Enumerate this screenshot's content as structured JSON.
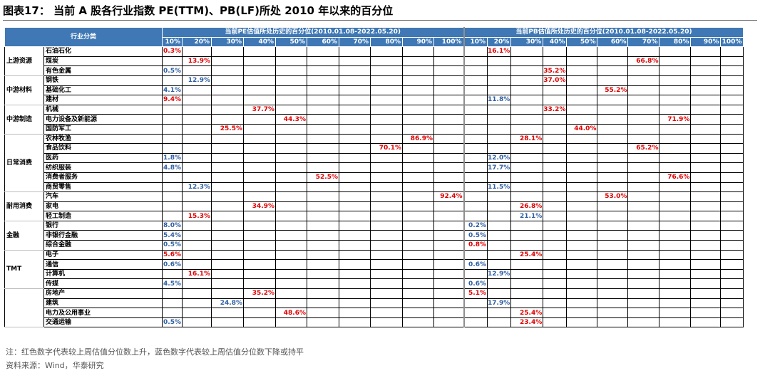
{
  "title": "图表17：  当前 A 股各行业指数 PE(TTM)、PB(LF)所处 2010 年以来的百分位",
  "table": {
    "industry_header": "行业分类",
    "pe_header": "当前PE估值所处历史的百分位(2010.01.08-2022.05.20)",
    "pb_header": "当前PB估值所处历史的百分位(2010.01.08-2022.05.20)",
    "percentile_labels": [
      "10%",
      "20%",
      "30%",
      "40%",
      "50%",
      "60%",
      "70%",
      "80%",
      "90%",
      "100%"
    ],
    "colors": {
      "up": "#e00000",
      "down": "#2f5fa3",
      "header": "#3f78b4"
    },
    "groups": [
      {
        "name": "上游资源",
        "industries": [
          {
            "name": "石油石化",
            "pe": "0.3%",
            "pe_dir": "up",
            "pb": "16.1%",
            "pb_dir": "up"
          },
          {
            "name": "煤炭",
            "pe": "13.9%",
            "pe_dir": "up",
            "pb": "66.8%",
            "pb_dir": "up"
          },
          {
            "name": "有色金属",
            "pe": "0.5%",
            "pe_dir": "down",
            "pb": "35.2%",
            "pb_dir": "up"
          }
        ]
      },
      {
        "name": "中游材料",
        "industries": [
          {
            "name": "钢铁",
            "pe": "12.9%",
            "pe_dir": "down",
            "pb": "37.0%",
            "pb_dir": "up"
          },
          {
            "name": "基础化工",
            "pe": "4.1%",
            "pe_dir": "down",
            "pb": "55.2%",
            "pb_dir": "up"
          },
          {
            "name": "建材",
            "pe": "9.4%",
            "pe_dir": "up",
            "pb": "11.8%",
            "pb_dir": "down"
          }
        ]
      },
      {
        "name": "中游制造",
        "industries": [
          {
            "name": "机械",
            "pe": "37.7%",
            "pe_dir": "up",
            "pb": "33.2%",
            "pb_dir": "up"
          },
          {
            "name": "电力设备及新能源",
            "pe": "44.3%",
            "pe_dir": "up",
            "pb": "71.9%",
            "pb_dir": "up"
          },
          {
            "name": "国防军工",
            "pe": "25.5%",
            "pe_dir": "up",
            "pb": "44.0%",
            "pb_dir": "up"
          }
        ]
      },
      {
        "name": "日常消费",
        "industries": [
          {
            "name": "农林牧渔",
            "pe": "86.9%",
            "pe_dir": "up",
            "pb": "28.1%",
            "pb_dir": "up"
          },
          {
            "name": "食品饮料",
            "pe": "70.1%",
            "pe_dir": "up",
            "pb": "65.2%",
            "pb_dir": "up"
          },
          {
            "name": "医药",
            "pe": "1.8%",
            "pe_dir": "down",
            "pb": "12.0%",
            "pb_dir": "down"
          },
          {
            "name": "纺织服装",
            "pe": "4.8%",
            "pe_dir": "down",
            "pb": "17.7%",
            "pb_dir": "down"
          },
          {
            "name": "消费者服务",
            "pe": "52.5%",
            "pe_dir": "up",
            "pb": "76.6%",
            "pb_dir": "up"
          },
          {
            "name": "商贸零售",
            "pe": "12.3%",
            "pe_dir": "down",
            "pb": "11.5%",
            "pb_dir": "down"
          }
        ]
      },
      {
        "name": "耐用消费",
        "industries": [
          {
            "name": "汽车",
            "pe": "92.4%",
            "pe_dir": "up",
            "pb": "53.0%",
            "pb_dir": "up"
          },
          {
            "name": "家电",
            "pe": "34.9%",
            "pe_dir": "up",
            "pb": "26.8%",
            "pb_dir": "up"
          },
          {
            "name": "轻工制造",
            "pe": "15.3%",
            "pe_dir": "up",
            "pb": "21.1%",
            "pb_dir": "down"
          }
        ]
      },
      {
        "name": "金融",
        "industries": [
          {
            "name": "银行",
            "pe": "8.0%",
            "pe_dir": "down",
            "pb": "0.2%",
            "pb_dir": "down"
          },
          {
            "name": "非银行金融",
            "pe": "5.4%",
            "pe_dir": "down",
            "pb": "0.5%",
            "pb_dir": "down"
          },
          {
            "name": "综合金融",
            "pe": "0.5%",
            "pe_dir": "down",
            "pb": "0.8%",
            "pb_dir": "up"
          }
        ]
      },
      {
        "name": "TMT",
        "industries": [
          {
            "name": "电子",
            "pe": "5.6%",
            "pe_dir": "up",
            "pb": "25.4%",
            "pb_dir": "up"
          },
          {
            "name": "通信",
            "pe": "0.6%",
            "pe_dir": "down",
            "pb": "0.6%",
            "pb_dir": "down"
          },
          {
            "name": "计算机",
            "pe": "16.1%",
            "pe_dir": "up",
            "pb": "12.9%",
            "pb_dir": "down"
          },
          {
            "name": "传媒",
            "pe": "4.5%",
            "pe_dir": "down",
            "pb": "0.6%",
            "pb_dir": "down"
          }
        ]
      },
      {
        "name": "",
        "industries": [
          {
            "name": "房地产",
            "pe": "35.2%",
            "pe_dir": "up",
            "pb": "5.1%",
            "pb_dir": "up"
          },
          {
            "name": "建筑",
            "pe": "24.8%",
            "pe_dir": "down",
            "pb": "17.9%",
            "pb_dir": "down"
          },
          {
            "name": "电力及公用事业",
            "pe": "48.6%",
            "pe_dir": "up",
            "pb": "25.4%",
            "pb_dir": "up"
          },
          {
            "name": "交通运输",
            "pe": "0.5%",
            "pe_dir": "down",
            "pb": "23.4%",
            "pb_dir": "up"
          }
        ]
      }
    ]
  },
  "note": "注：红色数字代表较上周估值分位数上升，蓝色数字代表较上周估值分位数下降或持平",
  "source": "资料来源：Wind，华泰研究"
}
